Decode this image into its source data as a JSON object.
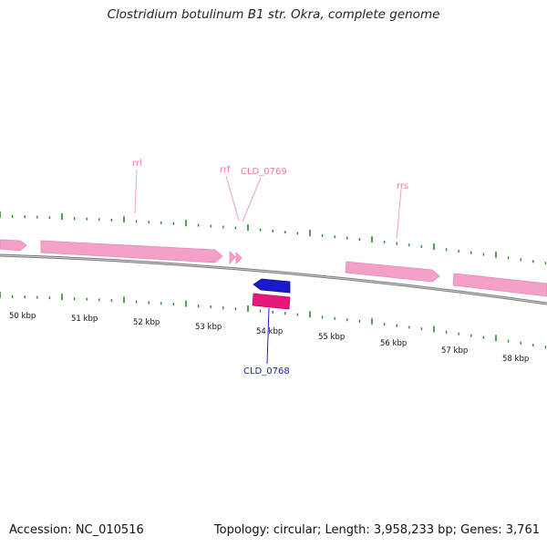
{
  "title": "Clostridium botulinum B1 str. Okra, complete genome",
  "footer": {
    "accession": "Accession: NC_010516",
    "summary": "Topology: circular; Length: 3,958,233 bp; Genes: 3,761"
  },
  "colors": {
    "backbone": "#8a8a8a",
    "forward_feature": "#f5a0c8",
    "reverse_feature_blue": "#1a1acc",
    "reverse_feature_pink": "#e8187a",
    "tick": "#2a8a2a",
    "label_pink": "#e879ad",
    "label_blue": "#2020cc"
  },
  "scale_labels": [
    "50 kbp",
    "51 kbp",
    "52 kbp",
    "53 kbp",
    "54 kbp",
    "55 kbp",
    "56 kbp",
    "57 kbp",
    "58 kbp"
  ],
  "gene_labels": [
    {
      "name": "rrl",
      "color_key": "label_pink"
    },
    {
      "name": "rrf",
      "color_key": "label_pink"
    },
    {
      "name": "CLD_0769",
      "color_key": "label_pink"
    },
    {
      "name": "rrs",
      "color_key": "label_pink"
    },
    {
      "name": "CLD_0768",
      "color_key": "label_blue"
    }
  ]
}
